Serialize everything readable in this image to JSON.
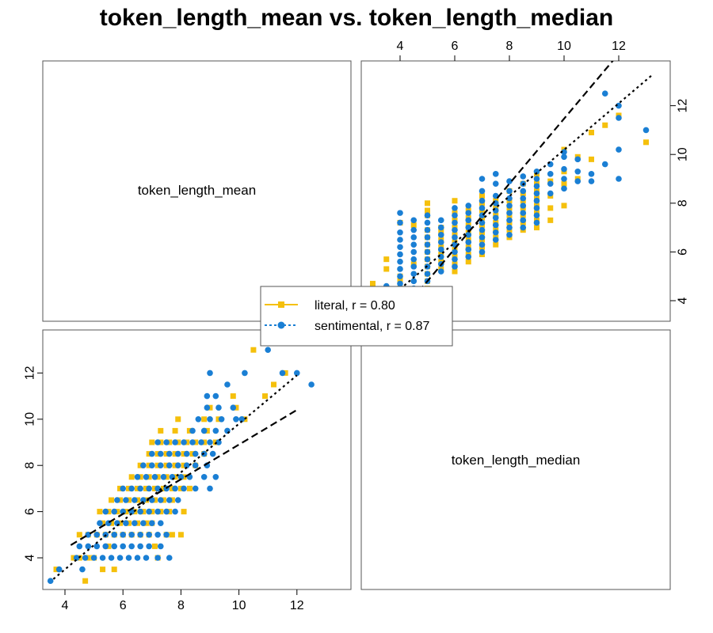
{
  "title": "token_length_mean vs. token_length_median",
  "chart_data": {
    "type": "scatter",
    "title": "token_length_mean vs. token_length_median",
    "variables": [
      "token_length_mean",
      "token_length_median"
    ],
    "axis_ranges": {
      "token_length_mean": [
        3.3,
        13.8
      ],
      "token_length_median": [
        3.3,
        13.8
      ]
    },
    "ticks": [
      4,
      6,
      8,
      10,
      12
    ],
    "legend": {
      "placement": "center"
    },
    "colors": {
      "literal": "#f5c00c",
      "sentimental": "#1a7fd4"
    },
    "series": [
      {
        "name": "literal",
        "r_label": "literal, r = 0.80",
        "marker": "square",
        "line_style": "dashed",
        "fit": {
          "intercept": 1.4,
          "slope": 0.75
        },
        "points": [
          [
            3.7,
            3.5
          ],
          [
            4.3,
            4.0
          ],
          [
            4.5,
            4.0
          ],
          [
            4.7,
            3.0
          ],
          [
            4.8,
            4.0
          ],
          [
            4.5,
            5.0
          ],
          [
            5.0,
            4.0
          ],
          [
            5.3,
            3.5
          ],
          [
            5.5,
            4.5
          ],
          [
            5.7,
            3.5
          ],
          [
            4.8,
            5.0
          ],
          [
            5.1,
            5.0
          ],
          [
            5.4,
            5.0
          ],
          [
            5.7,
            5.0
          ],
          [
            6.0,
            5.0
          ],
          [
            6.3,
            5.0
          ],
          [
            6.6,
            5.0
          ],
          [
            6.9,
            5.0
          ],
          [
            7.1,
            4.5
          ],
          [
            7.2,
            4.0
          ],
          [
            5.3,
            5.5
          ],
          [
            5.6,
            5.5
          ],
          [
            5.9,
            5.5
          ],
          [
            6.2,
            5.5
          ],
          [
            6.5,
            5.5
          ],
          [
            6.8,
            5.5
          ],
          [
            7.0,
            5.5
          ],
          [
            7.5,
            5.0
          ],
          [
            7.7,
            5.0
          ],
          [
            8.0,
            5.0
          ],
          [
            5.2,
            6.0
          ],
          [
            5.5,
            6.0
          ],
          [
            5.8,
            6.0
          ],
          [
            6.1,
            6.0
          ],
          [
            6.4,
            6.0
          ],
          [
            6.7,
            6.0
          ],
          [
            7.0,
            6.0
          ],
          [
            7.3,
            6.0
          ],
          [
            7.6,
            6.0
          ],
          [
            8.1,
            6.0
          ],
          [
            5.6,
            6.5
          ],
          [
            5.9,
            6.5
          ],
          [
            6.2,
            6.5
          ],
          [
            6.5,
            6.5
          ],
          [
            6.8,
            6.5
          ],
          [
            7.1,
            6.5
          ],
          [
            7.4,
            6.5
          ],
          [
            7.7,
            6.5
          ],
          [
            5.9,
            7.0
          ],
          [
            6.2,
            7.0
          ],
          [
            6.5,
            7.0
          ],
          [
            6.8,
            7.0
          ],
          [
            7.1,
            7.0
          ],
          [
            7.4,
            7.0
          ],
          [
            7.7,
            7.0
          ],
          [
            8.0,
            7.0
          ],
          [
            8.3,
            7.0
          ],
          [
            6.3,
            7.5
          ],
          [
            6.6,
            7.5
          ],
          [
            6.9,
            7.5
          ],
          [
            7.2,
            7.5
          ],
          [
            7.5,
            7.5
          ],
          [
            7.8,
            7.5
          ],
          [
            8.1,
            7.5
          ],
          [
            6.6,
            8.0
          ],
          [
            6.9,
            8.0
          ],
          [
            7.2,
            8.0
          ],
          [
            7.5,
            8.0
          ],
          [
            7.8,
            8.0
          ],
          [
            8.1,
            8.0
          ],
          [
            8.5,
            8.0
          ],
          [
            6.9,
            8.5
          ],
          [
            7.2,
            8.5
          ],
          [
            7.5,
            8.5
          ],
          [
            7.8,
            8.5
          ],
          [
            8.1,
            8.5
          ],
          [
            8.4,
            8.5
          ],
          [
            8.8,
            8.5
          ],
          [
            7.0,
            9.0
          ],
          [
            7.3,
            9.0
          ],
          [
            7.6,
            9.0
          ],
          [
            7.9,
            9.0
          ],
          [
            8.2,
            9.0
          ],
          [
            8.5,
            9.0
          ],
          [
            8.8,
            9.0
          ],
          [
            9.2,
            9.0
          ],
          [
            7.3,
            9.5
          ],
          [
            7.8,
            9.5
          ],
          [
            8.3,
            9.5
          ],
          [
            8.9,
            9.5
          ],
          [
            7.9,
            10.0
          ],
          [
            8.8,
            10.0
          ],
          [
            9.3,
            10.0
          ],
          [
            10.2,
            10.0
          ],
          [
            9.0,
            10.5
          ],
          [
            9.9,
            10.5
          ],
          [
            9.8,
            11.0
          ],
          [
            10.9,
            11.0
          ],
          [
            11.2,
            11.5
          ],
          [
            11.6,
            12.0
          ],
          [
            10.5,
            13.0
          ]
        ]
      },
      {
        "name": "sentimental",
        "r_label": "sentimental, r = 0.87",
        "marker": "circle",
        "line_style": "dotted",
        "fit": {
          "intercept": -0.7,
          "slope": 1.05
        },
        "points": [
          [
            3.5,
            3.0
          ],
          [
            3.8,
            3.5
          ],
          [
            4.6,
            3.5
          ],
          [
            4.4,
            4.0
          ],
          [
            4.7,
            4.0
          ],
          [
            5.0,
            4.0
          ],
          [
            5.3,
            4.0
          ],
          [
            5.6,
            4.0
          ],
          [
            5.9,
            4.0
          ],
          [
            6.2,
            4.0
          ],
          [
            6.5,
            4.0
          ],
          [
            6.8,
            4.0
          ],
          [
            7.2,
            4.0
          ],
          [
            7.6,
            4.0
          ],
          [
            4.5,
            4.5
          ],
          [
            4.8,
            4.5
          ],
          [
            5.1,
            4.5
          ],
          [
            5.4,
            4.5
          ],
          [
            5.7,
            4.5
          ],
          [
            6.0,
            4.5
          ],
          [
            6.3,
            4.5
          ],
          [
            6.6,
            4.5
          ],
          [
            6.9,
            4.5
          ],
          [
            7.3,
            4.5
          ],
          [
            4.8,
            5.0
          ],
          [
            5.1,
            5.0
          ],
          [
            5.4,
            5.0
          ],
          [
            5.7,
            5.0
          ],
          [
            6.0,
            5.0
          ],
          [
            6.3,
            5.0
          ],
          [
            6.6,
            5.0
          ],
          [
            6.9,
            5.0
          ],
          [
            7.2,
            5.0
          ],
          [
            7.5,
            5.0
          ],
          [
            5.2,
            5.5
          ],
          [
            5.5,
            5.5
          ],
          [
            5.8,
            5.5
          ],
          [
            6.1,
            5.5
          ],
          [
            6.4,
            5.5
          ],
          [
            6.7,
            5.5
          ],
          [
            7.0,
            5.5
          ],
          [
            7.3,
            5.5
          ],
          [
            5.4,
            6.0
          ],
          [
            5.7,
            6.0
          ],
          [
            6.0,
            6.0
          ],
          [
            6.3,
            6.0
          ],
          [
            6.6,
            6.0
          ],
          [
            6.9,
            6.0
          ],
          [
            7.2,
            6.0
          ],
          [
            7.5,
            6.0
          ],
          [
            7.8,
            6.0
          ],
          [
            5.8,
            6.5
          ],
          [
            6.1,
            6.5
          ],
          [
            6.4,
            6.5
          ],
          [
            6.7,
            6.5
          ],
          [
            7.0,
            6.5
          ],
          [
            7.3,
            6.5
          ],
          [
            7.6,
            6.5
          ],
          [
            7.9,
            6.5
          ],
          [
            6.0,
            7.0
          ],
          [
            6.3,
            7.0
          ],
          [
            6.6,
            7.0
          ],
          [
            6.9,
            7.0
          ],
          [
            7.2,
            7.0
          ],
          [
            7.5,
            7.0
          ],
          [
            7.8,
            7.0
          ],
          [
            8.1,
            7.0
          ],
          [
            8.5,
            7.0
          ],
          [
            9.0,
            7.0
          ],
          [
            6.5,
            7.5
          ],
          [
            6.8,
            7.5
          ],
          [
            7.1,
            7.5
          ],
          [
            7.4,
            7.5
          ],
          [
            7.7,
            7.5
          ],
          [
            8.0,
            7.5
          ],
          [
            8.3,
            7.5
          ],
          [
            8.8,
            7.5
          ],
          [
            9.2,
            7.5
          ],
          [
            6.7,
            8.0
          ],
          [
            7.0,
            8.0
          ],
          [
            7.3,
            8.0
          ],
          [
            7.6,
            8.0
          ],
          [
            7.9,
            8.0
          ],
          [
            8.2,
            8.0
          ],
          [
            8.5,
            8.0
          ],
          [
            8.9,
            8.0
          ],
          [
            7.0,
            8.5
          ],
          [
            7.3,
            8.5
          ],
          [
            7.6,
            8.5
          ],
          [
            7.9,
            8.5
          ],
          [
            8.2,
            8.5
          ],
          [
            8.5,
            8.5
          ],
          [
            8.8,
            8.5
          ],
          [
            9.1,
            8.5
          ],
          [
            7.2,
            9.0
          ],
          [
            7.5,
            9.0
          ],
          [
            7.8,
            9.0
          ],
          [
            8.1,
            9.0
          ],
          [
            8.4,
            9.0
          ],
          [
            8.7,
            9.0
          ],
          [
            9.0,
            9.0
          ],
          [
            9.3,
            9.0
          ],
          [
            8.4,
            9.5
          ],
          [
            8.8,
            9.5
          ],
          [
            9.2,
            9.5
          ],
          [
            9.6,
            9.5
          ],
          [
            8.6,
            10.0
          ],
          [
            9.0,
            10.0
          ],
          [
            9.4,
            10.0
          ],
          [
            9.9,
            10.0
          ],
          [
            10.1,
            10.0
          ],
          [
            8.9,
            10.5
          ],
          [
            9.3,
            10.5
          ],
          [
            9.8,
            10.5
          ],
          [
            8.9,
            11.0
          ],
          [
            9.2,
            11.0
          ],
          [
            9.6,
            11.5
          ],
          [
            9.0,
            12.0
          ],
          [
            10.2,
            12.0
          ],
          [
            11.5,
            12.0
          ],
          [
            12.0,
            12.0
          ],
          [
            12.5,
            11.5
          ],
          [
            11.0,
            13.0
          ]
        ]
      }
    ]
  }
}
